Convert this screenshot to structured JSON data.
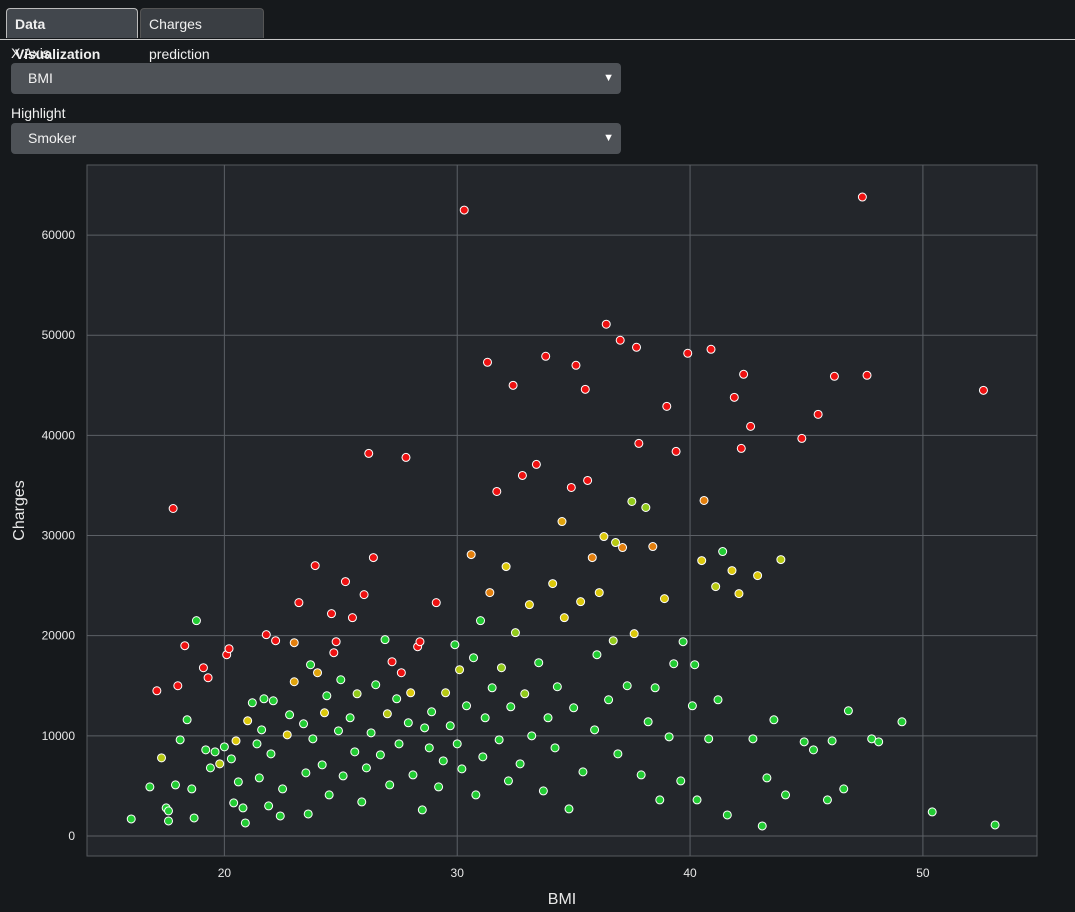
{
  "tabs": [
    {
      "label": "Data Visualization",
      "active": true
    },
    {
      "label": "Charges prediction",
      "active": false
    }
  ],
  "controls": {
    "x_axis_label": "X Axis",
    "x_axis_value": "BMI",
    "highlight_label": "Highlight",
    "highlight_value": "Smoker"
  },
  "colors": {
    "background": "#16191c",
    "plot_bg": "#23262b",
    "non_smoker": "#22cc33",
    "smoker": "#ee1111"
  },
  "chart_data": {
    "type": "scatter",
    "title": "",
    "xlabel": "BMI",
    "ylabel": "Charges",
    "xlim": [
      14.1,
      54.9
    ],
    "ylim": [
      -2000,
      67000
    ],
    "xticks": [
      20,
      30,
      40,
      50
    ],
    "yticks": [
      0,
      10000,
      20000,
      30000,
      40000,
      50000,
      60000
    ],
    "grid": true,
    "color_scale_by": "Smoker",
    "color_scale": [
      "#22cc33",
      "#ee1111"
    ],
    "points": [
      [
        16,
        1700,
        0
      ],
      [
        16.8,
        4900,
        0
      ],
      [
        17.1,
        14500,
        1
      ],
      [
        17.3,
        7800,
        0.4
      ],
      [
        17.5,
        2800,
        0
      ],
      [
        17.6,
        2500,
        0
      ],
      [
        17.6,
        1500,
        0
      ],
      [
        17.8,
        32700,
        1
      ],
      [
        17.9,
        5100,
        0
      ],
      [
        18,
        15000,
        1
      ],
      [
        18.1,
        9600,
        0
      ],
      [
        18.3,
        19000,
        1
      ],
      [
        18.4,
        11600,
        0
      ],
      [
        18.6,
        4700,
        0
      ],
      [
        18.7,
        1800,
        0
      ],
      [
        18.8,
        21500,
        0
      ],
      [
        19.1,
        16800,
        1
      ],
      [
        19.2,
        8600,
        0
      ],
      [
        19.3,
        15800,
        1
      ],
      [
        19.4,
        6800,
        0
      ],
      [
        19.6,
        8400,
        0
      ],
      [
        19.8,
        7200,
        0.4
      ],
      [
        20,
        8900,
        0
      ],
      [
        20.1,
        18100,
        1
      ],
      [
        20.2,
        18700,
        1
      ],
      [
        20.3,
        7700,
        0
      ],
      [
        20.4,
        3300,
        0
      ],
      [
        20.5,
        9500,
        0.5
      ],
      [
        20.6,
        5400,
        0
      ],
      [
        20.8,
        2800,
        0
      ],
      [
        20.9,
        1300,
        0
      ],
      [
        21,
        11500,
        0.5
      ],
      [
        21.2,
        13300,
        0
      ],
      [
        21.4,
        9200,
        0
      ],
      [
        21.5,
        5800,
        0
      ],
      [
        21.6,
        10600,
        0
      ],
      [
        21.7,
        13700,
        0
      ],
      [
        21.8,
        20100,
        1
      ],
      [
        21.9,
        3000,
        0
      ],
      [
        22,
        8200,
        0
      ],
      [
        22.1,
        13500,
        0
      ],
      [
        22.2,
        19500,
        1
      ],
      [
        22.4,
        2000,
        0
      ],
      [
        22.5,
        4700,
        0
      ],
      [
        22.7,
        10100,
        0.5
      ],
      [
        22.8,
        12100,
        0
      ],
      [
        23,
        19300,
        0.7
      ],
      [
        23,
        15400,
        0.6
      ],
      [
        23.2,
        23300,
        1
      ],
      [
        23.4,
        11200,
        0
      ],
      [
        23.5,
        6300,
        0
      ],
      [
        23.6,
        2200,
        0
      ],
      [
        23.7,
        17100,
        0
      ],
      [
        23.8,
        9700,
        0
      ],
      [
        23.9,
        27000,
        1
      ],
      [
        24,
        16300,
        0.6
      ],
      [
        24.2,
        7100,
        0
      ],
      [
        24.3,
        12300,
        0.5
      ],
      [
        24.4,
        14000,
        0
      ],
      [
        24.5,
        4100,
        0
      ],
      [
        24.6,
        22200,
        1
      ],
      [
        24.7,
        18300,
        1
      ],
      [
        24.8,
        19400,
        1
      ],
      [
        24.9,
        10500,
        0
      ],
      [
        25,
        15600,
        0
      ],
      [
        25.1,
        6000,
        0
      ],
      [
        25.2,
        25400,
        1
      ],
      [
        25.4,
        11800,
        0
      ],
      [
        25.5,
        21800,
        1
      ],
      [
        25.6,
        8400,
        0
      ],
      [
        25.7,
        14200,
        0.3
      ],
      [
        25.9,
        3400,
        0
      ],
      [
        26,
        24100,
        1
      ],
      [
        26.1,
        6800,
        0
      ],
      [
        26.2,
        38200,
        1
      ],
      [
        26.3,
        10300,
        0
      ],
      [
        26.4,
        27800,
        1
      ],
      [
        26.5,
        15100,
        0
      ],
      [
        26.7,
        8100,
        0
      ],
      [
        26.9,
        19600,
        0
      ],
      [
        27,
        12200,
        0.4
      ],
      [
        27.1,
        5100,
        0
      ],
      [
        27.2,
        17400,
        1
      ],
      [
        27.4,
        13700,
        0
      ],
      [
        27.5,
        9200,
        0
      ],
      [
        27.6,
        16300,
        1
      ],
      [
        27.8,
        37800,
        1
      ],
      [
        27.9,
        11300,
        0
      ],
      [
        28,
        14300,
        0.5
      ],
      [
        28.1,
        6100,
        0
      ],
      [
        28.3,
        18900,
        1
      ],
      [
        28.4,
        19400,
        1
      ],
      [
        28.5,
        2600,
        0
      ],
      [
        28.6,
        10800,
        0
      ],
      [
        28.8,
        8800,
        0
      ],
      [
        28.9,
        12400,
        0
      ],
      [
        29.1,
        23300,
        1
      ],
      [
        29.2,
        4900,
        0
      ],
      [
        29.4,
        7500,
        0
      ],
      [
        29.5,
        14300,
        0.4
      ],
      [
        29.7,
        11000,
        0
      ],
      [
        29.9,
        19100,
        0
      ],
      [
        30,
        9200,
        0
      ],
      [
        30.1,
        16600,
        0.4
      ],
      [
        30.2,
        6700,
        0
      ],
      [
        30.3,
        62500,
        1
      ],
      [
        30.4,
        13000,
        0
      ],
      [
        30.6,
        28100,
        0.7
      ],
      [
        30.7,
        17800,
        0
      ],
      [
        30.8,
        4100,
        0
      ],
      [
        31,
        21500,
        0
      ],
      [
        31.1,
        7900,
        0
      ],
      [
        31.2,
        11800,
        0
      ],
      [
        31.3,
        47300,
        1
      ],
      [
        31.4,
        24300,
        0.7
      ],
      [
        31.5,
        14800,
        0
      ],
      [
        31.7,
        34400,
        1
      ],
      [
        31.8,
        9600,
        0
      ],
      [
        31.9,
        16800,
        0.3
      ],
      [
        32.1,
        26900,
        0.5
      ],
      [
        32.2,
        5500,
        0
      ],
      [
        32.3,
        12900,
        0
      ],
      [
        32.4,
        45000,
        1
      ],
      [
        32.5,
        20300,
        0.3
      ],
      [
        32.7,
        7200,
        0
      ],
      [
        32.8,
        36000,
        1
      ],
      [
        32.9,
        14200,
        0.3
      ],
      [
        33.1,
        23100,
        0.5
      ],
      [
        33.2,
        10000,
        0
      ],
      [
        33.4,
        37100,
        1
      ],
      [
        33.5,
        17300,
        0
      ],
      [
        33.7,
        4500,
        0
      ],
      [
        33.8,
        47900,
        1
      ],
      [
        33.9,
        11800,
        0
      ],
      [
        34.1,
        25200,
        0.5
      ],
      [
        34.2,
        8800,
        0
      ],
      [
        34.3,
        14900,
        0
      ],
      [
        34.5,
        31400,
        0.6
      ],
      [
        34.6,
        21800,
        0.5
      ],
      [
        34.8,
        2700,
        0
      ],
      [
        34.9,
        34800,
        1
      ],
      [
        35,
        12800,
        0
      ],
      [
        35.1,
        47000,
        1
      ],
      [
        35.3,
        23400,
        0.5
      ],
      [
        35.4,
        6400,
        0
      ],
      [
        35.5,
        44600,
        1
      ],
      [
        35.6,
        35500,
        1
      ],
      [
        35.8,
        27800,
        0.7
      ],
      [
        35.9,
        10600,
        0
      ],
      [
        36,
        18100,
        0
      ],
      [
        36.1,
        24300,
        0.5
      ],
      [
        36.3,
        29900,
        0.5
      ],
      [
        36.4,
        51100,
        1
      ],
      [
        36.5,
        13600,
        0
      ],
      [
        36.7,
        19500,
        0.3
      ],
      [
        36.8,
        29300,
        0.4
      ],
      [
        36.9,
        8200,
        0
      ],
      [
        37,
        49500,
        1
      ],
      [
        37.1,
        28800,
        0.7
      ],
      [
        37.3,
        15000,
        0
      ],
      [
        37.5,
        33400,
        0.3
      ],
      [
        37.6,
        20200,
        0.5
      ],
      [
        37.7,
        48800,
        1
      ],
      [
        37.8,
        39200,
        1
      ],
      [
        37.9,
        6100,
        0
      ],
      [
        38.1,
        32800,
        0.3
      ],
      [
        38.2,
        11400,
        0
      ],
      [
        38.4,
        28900,
        0.7
      ],
      [
        38.5,
        14800,
        0
      ],
      [
        38.7,
        3600,
        0
      ],
      [
        38.9,
        23700,
        0.5
      ],
      [
        39,
        42900,
        1
      ],
      [
        39.1,
        9900,
        0
      ],
      [
        39.3,
        17200,
        0
      ],
      [
        39.4,
        38400,
        1
      ],
      [
        39.6,
        5500,
        0
      ],
      [
        39.7,
        19400,
        0
      ],
      [
        39.9,
        48200,
        1
      ],
      [
        40.1,
        13000,
        0
      ],
      [
        40.2,
        17100,
        0
      ],
      [
        40.3,
        3600,
        0
      ],
      [
        40.5,
        27500,
        0.5
      ],
      [
        40.6,
        33500,
        0.7
      ],
      [
        40.8,
        9700,
        0
      ],
      [
        40.9,
        48600,
        1
      ],
      [
        41.1,
        24900,
        0.4
      ],
      [
        41.2,
        13600,
        0
      ],
      [
        41.4,
        28400,
        0
      ],
      [
        41.6,
        2100,
        0
      ],
      [
        41.8,
        26500,
        0.5
      ],
      [
        41.9,
        43800,
        1
      ],
      [
        42.1,
        24200,
        0.5
      ],
      [
        42.2,
        38700,
        1
      ],
      [
        42.3,
        46100,
        1
      ],
      [
        42.6,
        40900,
        1
      ],
      [
        42.7,
        9700,
        0
      ],
      [
        42.9,
        26000,
        0.5
      ],
      [
        43.1,
        1000,
        0
      ],
      [
        43.3,
        5800,
        0
      ],
      [
        43.6,
        11600,
        0
      ],
      [
        43.9,
        27600,
        0.4
      ],
      [
        44.1,
        4100,
        0
      ],
      [
        44.8,
        39700,
        1
      ],
      [
        44.9,
        9400,
        0
      ],
      [
        45.3,
        8600,
        0
      ],
      [
        45.5,
        42100,
        1
      ],
      [
        45.9,
        3600,
        0
      ],
      [
        46.1,
        9500,
        0
      ],
      [
        46.2,
        45900,
        1
      ],
      [
        46.6,
        4700,
        0
      ],
      [
        46.8,
        12500,
        0
      ],
      [
        47.4,
        63800,
        1
      ],
      [
        47.6,
        46000,
        1
      ],
      [
        47.8,
        9700,
        0
      ],
      [
        48.1,
        9400,
        0
      ],
      [
        49.1,
        11400,
        0
      ],
      [
        50.4,
        2400,
        0
      ],
      [
        52.6,
        44500,
        1
      ],
      [
        53.1,
        1100,
        0
      ]
    ]
  }
}
